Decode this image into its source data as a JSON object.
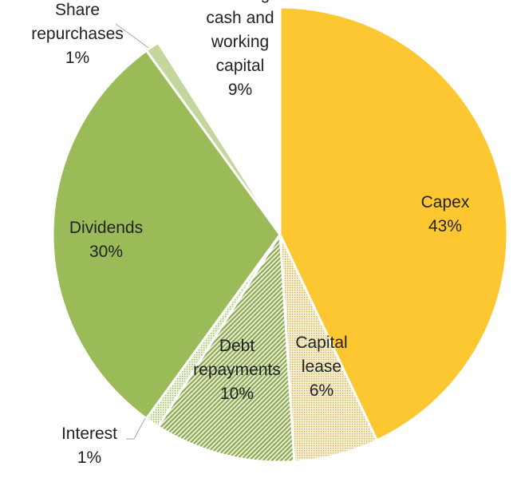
{
  "chart_data": {
    "type": "pie",
    "slices": [
      {
        "key": "capex",
        "lines": [
          "Capex",
          "43%"
        ],
        "value": 43,
        "fill": "#fdc731",
        "pattern": "solid"
      },
      {
        "key": "capital-lease",
        "lines": [
          "Capital",
          "lease",
          "6%"
        ],
        "value": 6,
        "fill": "#ffffff",
        "pattern": "dots-yellow"
      },
      {
        "key": "debt-repayments",
        "lines": [
          "Debt",
          "repayments",
          "10%"
        ],
        "value": 10,
        "fill": "#ffffff",
        "pattern": "hatch-green"
      },
      {
        "key": "interest",
        "lines": [
          "Interest",
          "1%"
        ],
        "value": 1,
        "fill": "#ffffff",
        "pattern": "dots-green"
      },
      {
        "key": "dividends",
        "lines": [
          "Dividends",
          "30%"
        ],
        "value": 30,
        "fill": "#9bbb59",
        "pattern": "solid"
      },
      {
        "key": "share-repurchases",
        "lines": [
          "Share",
          "repurchases",
          "1%"
        ],
        "value": 1,
        "fill": "#c3d69b",
        "pattern": "solid"
      },
      {
        "key": "building-cash",
        "lines": [
          "Building",
          "cash and",
          "working",
          "capital",
          "9%"
        ],
        "value": 9,
        "fill": "#ffffff",
        "pattern": "solid"
      }
    ],
    "start_angle_deg": 0,
    "direction": "clockwise",
    "legend": "none"
  }
}
